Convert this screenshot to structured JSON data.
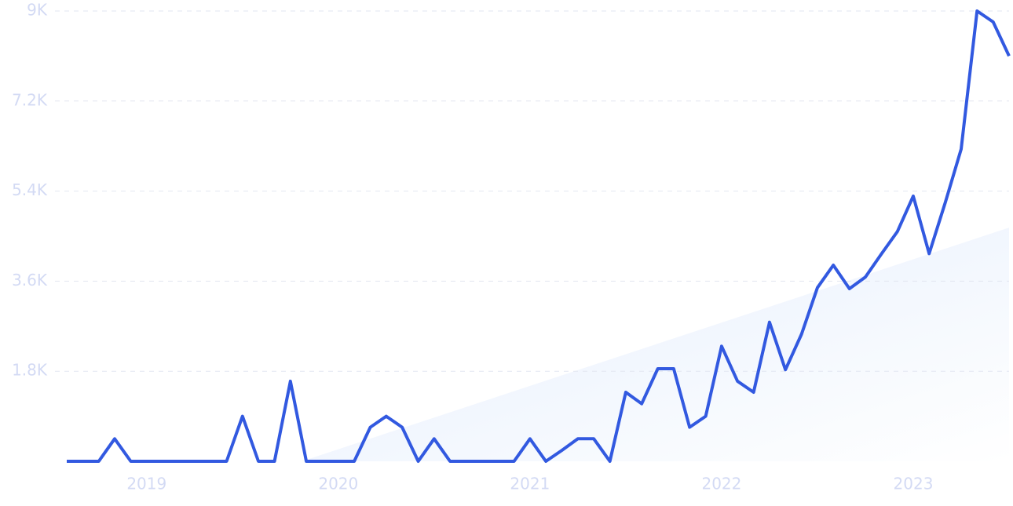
{
  "chart_data": {
    "type": "line",
    "x": [
      2018.583,
      2018.667,
      2018.75,
      2018.833,
      2018.917,
      2019,
      2019.083,
      2019.167,
      2019.25,
      2019.333,
      2019.417,
      2019.5,
      2019.583,
      2019.667,
      2019.75,
      2019.833,
      2019.917,
      2020,
      2020.083,
      2020.167,
      2020.25,
      2020.333,
      2020.417,
      2020.5,
      2020.583,
      2020.667,
      2020.75,
      2020.833,
      2020.917,
      2021,
      2021.083,
      2021.167,
      2021.25,
      2021.333,
      2021.417,
      2021.5,
      2021.583,
      2021.667,
      2021.75,
      2021.833,
      2021.917,
      2022,
      2022.083,
      2022.167,
      2022.25,
      2022.333,
      2022.417,
      2022.5,
      2022.583,
      2022.667,
      2022.75,
      2022.833,
      2022.917,
      2023,
      2023.083,
      2023.167,
      2023.25,
      2023.333,
      2023.417,
      2023.5
    ],
    "series": [
      {
        "color": "#3259e0",
        "values": [
          0,
          0,
          0,
          450,
          0,
          0,
          0,
          0,
          0,
          0,
          0,
          900,
          0,
          0,
          1600,
          0,
          0,
          0,
          0,
          680,
          900,
          680,
          0,
          450,
          0,
          0,
          0,
          0,
          0,
          450,
          0,
          220,
          450,
          450,
          0,
          1380,
          1150,
          1850,
          1850,
          680,
          900,
          2300,
          1600,
          1380,
          2780,
          1830,
          2540,
          3470,
          3920,
          3450,
          3680,
          4140,
          4590,
          5300,
          4150,
          5170,
          6240,
          9000,
          8780,
          8100
        ]
      }
    ],
    "trend": {
      "color": "#e6f0fd",
      "x": [
        2019.81,
        2023.5
      ],
      "values": [
        0,
        4670
      ]
    },
    "xlim": [
      2018.583,
      2023.5
    ],
    "xticks": [
      2019,
      2020,
      2021,
      2022,
      2023
    ],
    "ylim": [
      0,
      9000
    ],
    "yticks": [
      {
        "value": 1800,
        "label": "1.8K"
      },
      {
        "value": 3600,
        "label": "3.6K"
      },
      {
        "value": 5400,
        "label": "5.4K"
      },
      {
        "value": 7200,
        "label": "7.2K"
      },
      {
        "value": 9000,
        "label": "9K"
      }
    ],
    "grid": true
  }
}
